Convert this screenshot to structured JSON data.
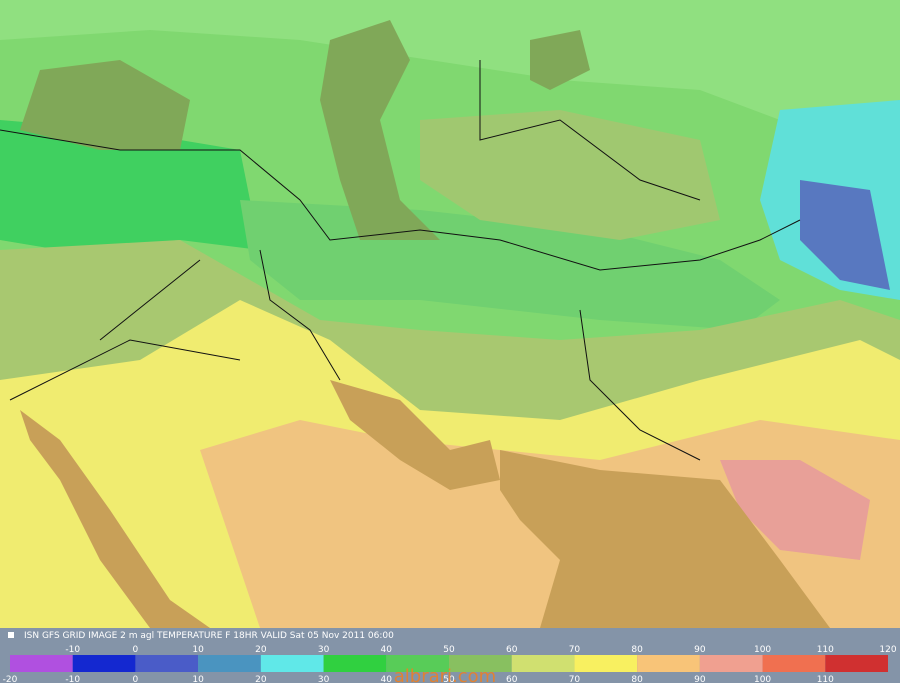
{
  "caption": "ISN GFS GRID IMAGE 2 m agl TEMPERATURE F 18HR VALID Sat 05 Nov 2011 06:00",
  "legend": {
    "bins": [
      -20,
      -10,
      0,
      10,
      20,
      30,
      40,
      50,
      60,
      70,
      80,
      90,
      100,
      110,
      120
    ],
    "colors": [
      "#b050e0",
      "#1428d0",
      "#4a5cc8",
      "#4a94c0",
      "#60e8e8",
      "#30d040",
      "#58cc58",
      "#88c060",
      "#d0e070",
      "#f8f060",
      "#f8c478",
      "#f0a090",
      "#f07050",
      "#d03030"
    ]
  },
  "watermark": "albrari.com"
}
